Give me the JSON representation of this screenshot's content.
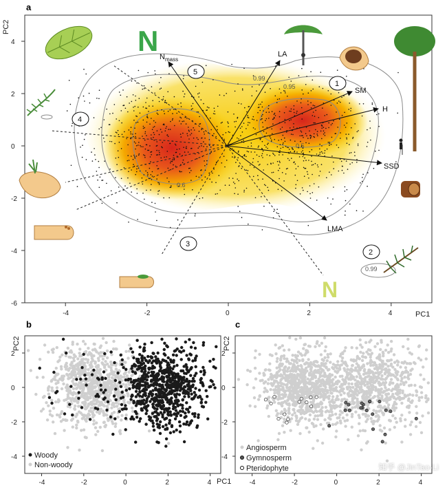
{
  "panel_a": {
    "letter": "a",
    "xlabel": "PC1",
    "ylabel": "PC2",
    "contour_labels": [
      "0.99",
      "0.95",
      "0.5",
      "0.6",
      "0.99"
    ],
    "circled_numbers": [
      "1",
      "2",
      "3",
      "4",
      "5"
    ],
    "trait_labels": {
      "n_mass": "N",
      "n_mass_sub": "mass",
      "la": "LA",
      "sm": "SM",
      "h": "H",
      "ssd": "SSD",
      "lma": "LMA"
    },
    "big_n": "N"
  },
  "panel_b": {
    "letter": "b",
    "xlabel": "PC1",
    "ylabel": "PC2",
    "legend": [
      "Woody",
      "Non-woody"
    ]
  },
  "panel_c": {
    "letter": "c",
    "xlabel": "PC1",
    "ylabel": "PC2",
    "legend": [
      "Angiosperm",
      "Gymnosperm",
      "Pteridophyte"
    ]
  },
  "watermark": "知乎 @JinTao-Li",
  "colors": {
    "woody": "#1a1a1a",
    "nonwoody": "#cfcfcf",
    "hot": "#d42a1a",
    "warm": "#f5c400",
    "contour": "#8a8a8a"
  },
  "chart_data": [
    {
      "type": "scatter",
      "title": "",
      "xlabel": "PC1",
      "ylabel": "PC2",
      "xlim": [
        -5,
        5
      ],
      "ylim": [
        -6,
        5
      ],
      "x_ticks": [
        -4,
        -2,
        0,
        2,
        4
      ],
      "y_ticks": [
        -6,
        -4,
        -2,
        0,
        2,
        4
      ],
      "density_peaks": [
        {
          "x": -1.6,
          "y": 0.2
        },
        {
          "x": 1.8,
          "y": 1.0
        }
      ],
      "vectors": [
        {
          "label": "Nmass",
          "x": -1.6,
          "y": 3.3
        },
        {
          "label": "LA",
          "x": 1.3,
          "y": 3.3
        },
        {
          "label": "SM",
          "x": 3.2,
          "y": 2.1
        },
        {
          "label": "H",
          "x": 3.8,
          "y": 1.5
        },
        {
          "label": "SSD",
          "x": 3.8,
          "y": -0.6
        },
        {
          "label": "LMA",
          "x": 2.4,
          "y": -2.9
        }
      ],
      "grid": false
    },
    {
      "type": "scatter",
      "xlabel": "PC1",
      "ylabel": "PC2",
      "xlim": [
        -4.8,
        4.5
      ],
      "ylim": [
        -5,
        3
      ],
      "x_ticks": [
        -4,
        -2,
        0,
        2,
        4
      ],
      "y_ticks": [
        -4,
        -2,
        0,
        2
      ],
      "series": [
        {
          "name": "Woody"
        },
        {
          "name": "Non-woody"
        }
      ],
      "legend_position": "bottom-left"
    },
    {
      "type": "scatter",
      "xlabel": "PC1",
      "ylabel": "PC2",
      "xlim": [
        -4.8,
        4.5
      ],
      "ylim": [
        -5,
        3
      ],
      "x_ticks": [
        -4,
        -2,
        0,
        2,
        4
      ],
      "y_ticks": [
        -4,
        -2,
        0,
        2
      ],
      "series": [
        {
          "name": "Angiosperm"
        },
        {
          "name": "Gymnosperm"
        },
        {
          "name": "Pteridophyte"
        }
      ],
      "legend_position": "bottom-left"
    }
  ]
}
